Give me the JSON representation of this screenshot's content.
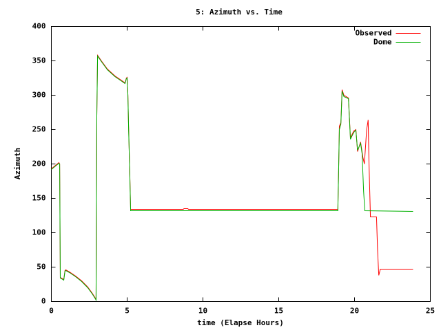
{
  "chart_data": {
    "type": "line",
    "title": "5: Azimuth vs. Time",
    "x_label": "time (Elapse Hours)",
    "y_label": "Azimuth",
    "xlim": [
      0,
      25
    ],
    "xticks": [
      0,
      5,
      10,
      15,
      20,
      25
    ],
    "ylim": [
      0,
      400
    ],
    "yticks": [
      0,
      50,
      100,
      150,
      200,
      250,
      300,
      350,
      400
    ],
    "grid": false,
    "legend": "top-right",
    "series": [
      {
        "name": "Observed",
        "color": "#ff0000",
        "x": [
          0,
          0.5,
          0.55,
          0.59,
          0.75,
          0.82,
          0.9,
          0.95,
          1.2,
          1.6,
          2.0,
          2.4,
          2.7,
          2.9,
          2.95,
          3.0,
          3.05,
          3.3,
          3.7,
          4.2,
          4.6,
          4.86,
          4.95,
          5.0,
          5.05,
          5.09,
          5.18,
          5.23,
          8.7,
          8.75,
          9.0,
          9.05,
          18.9,
          18.95,
          19.0,
          19.1,
          19.18,
          19.3,
          19.6,
          19.73,
          19.95,
          20.09,
          20.2,
          20.4,
          20.55,
          20.65,
          20.8,
          20.9,
          20.95,
          21.05,
          21.45,
          21.52,
          21.6,
          21.7,
          23.86
        ],
        "values": [
          193,
          202,
          200,
          35,
          33,
          32,
          45,
          46,
          43,
          37,
          30,
          21,
          12,
          5,
          3,
          270,
          358,
          350,
          338,
          328,
          322,
          318,
          325,
          326,
          300,
          260,
          182,
          134,
          134,
          135,
          135,
          134,
          134,
          190,
          255,
          260,
          308,
          300,
          296,
          238,
          248,
          250,
          218,
          232,
          210,
          200,
          250,
          264,
          205,
          123,
          123,
          75,
          38,
          47,
          47
        ]
      },
      {
        "name": "Dome",
        "color": "#00b000",
        "x": [
          0,
          0.5,
          0.55,
          0.59,
          0.75,
          0.82,
          0.9,
          0.95,
          1.2,
          1.6,
          2.0,
          2.4,
          2.7,
          2.9,
          2.95,
          3.0,
          3.05,
          3.3,
          3.7,
          4.2,
          4.6,
          4.86,
          4.95,
          5.0,
          5.05,
          5.09,
          5.18,
          5.23,
          18.9,
          18.95,
          19.0,
          19.1,
          19.18,
          19.3,
          19.6,
          19.73,
          19.95,
          20.09,
          20.2,
          20.4,
          20.5,
          20.6,
          20.68,
          23.86
        ],
        "values": [
          192,
          201,
          200,
          34,
          32,
          31,
          44,
          45,
          42,
          36,
          29,
          20,
          11,
          4,
          2,
          270,
          357,
          349,
          337,
          327,
          321,
          317,
          324,
          325,
          300,
          258,
          180,
          132,
          132,
          190,
          250,
          258,
          306,
          298,
          295,
          236,
          246,
          249,
          220,
          230,
          215,
          160,
          132,
          131
        ]
      }
    ]
  }
}
